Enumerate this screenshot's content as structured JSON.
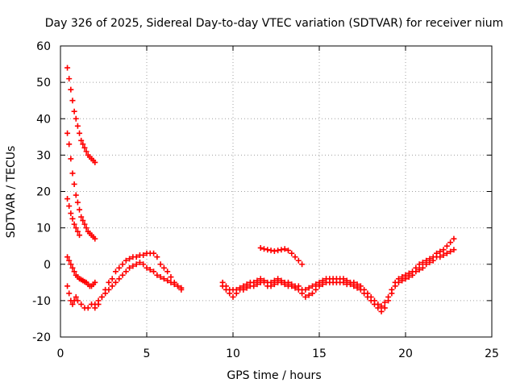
{
  "chart_data": {
    "type": "scatter",
    "title": "Day 326 of 2025, Sidereal Day-to-day VTEC variation (SDTVAR) for receiver nium",
    "xlabel": "GPS time / hours",
    "ylabel": "SDTVAR / TECUs",
    "xlim": [
      0,
      25
    ],
    "ylim": [
      -20,
      60
    ],
    "xticks": [
      0,
      5,
      10,
      15,
      20,
      25
    ],
    "yticks": [
      -20,
      -10,
      0,
      10,
      20,
      30,
      40,
      50,
      60
    ],
    "grid": true,
    "marker": "+",
    "color": "#ff0000",
    "series": [
      {
        "name": "arc1",
        "x": [
          0.4,
          0.5,
          0.6,
          0.7,
          0.8,
          0.9,
          1.0,
          1.1,
          1.2,
          1.3,
          1.4,
          1.5,
          1.6,
          1.7,
          1.8,
          1.9,
          2.0
        ],
        "y": [
          54,
          51,
          48,
          45,
          42,
          40,
          38,
          36,
          34,
          33,
          32,
          31,
          30,
          29.5,
          29,
          28.5,
          28
        ]
      },
      {
        "name": "arc2",
        "x": [
          0.4,
          0.5,
          0.6,
          0.7,
          0.8,
          0.9,
          1.0,
          1.1,
          1.2,
          1.3,
          1.4,
          1.5,
          1.6,
          1.7,
          1.8,
          1.9,
          2.0
        ],
        "y": [
          36,
          33,
          29,
          25,
          22,
          19,
          17,
          15,
          13,
          12,
          11,
          10,
          9,
          8.5,
          8,
          7.5,
          7
        ]
      },
      {
        "name": "arc3",
        "x": [
          0.4,
          0.5,
          0.6,
          0.7,
          0.8,
          0.9,
          1.0,
          1.1
        ],
        "y": [
          18,
          16,
          14,
          12.5,
          11,
          10,
          9,
          8
        ]
      },
      {
        "name": "arc4",
        "x": [
          0.4,
          0.5,
          0.6,
          0.7,
          0.8,
          0.9,
          1.0,
          1.1,
          1.2,
          1.3,
          1.4,
          1.5,
          1.6,
          1.7,
          1.8,
          1.9,
          2.0
        ],
        "y": [
          2,
          1,
          0,
          -1,
          -2,
          -3,
          -3.5,
          -4,
          -4.2,
          -4.5,
          -4.8,
          -5,
          -5.5,
          -6,
          -6,
          -5.5,
          -5
        ]
      },
      {
        "name": "arc5",
        "x": [
          0.4,
          0.5,
          0.6,
          0.7,
          0.8,
          0.9,
          1.0,
          1.2,
          1.4,
          1.6,
          1.8,
          2.0,
          2.2,
          2.4,
          2.6,
          2.8,
          3.0,
          3.2,
          3.4,
          3.6,
          3.8,
          4.0,
          4.2,
          4.4,
          4.6,
          4.8,
          5.0,
          5.2,
          5.4,
          5.6,
          5.8,
          6.0,
          6.2,
          6.4,
          6.6,
          6.8,
          7.0
        ],
        "y": [
          -6,
          -8,
          -10,
          -11,
          -10,
          -9,
          -10,
          -11,
          -12,
          -12,
          -11,
          -11,
          -10,
          -9,
          -7,
          -5,
          -4,
          -2,
          -1,
          0,
          1,
          1.5,
          2,
          2,
          2.5,
          2.5,
          3,
          3,
          3,
          2,
          0,
          -1,
          -2,
          -3.5,
          -5,
          -6,
          -7
        ]
      },
      {
        "name": "arc6",
        "x": [
          2.0,
          2.2,
          2.4,
          2.6,
          2.8,
          3.0,
          3.2,
          3.4,
          3.6,
          3.8,
          4.0,
          4.2,
          4.4,
          4.6,
          4.8,
          5.0,
          5.2,
          5.4,
          5.6,
          5.8,
          6.0,
          6.2,
          6.4,
          6.6,
          6.8,
          7.0
        ],
        "y": [
          -12,
          -11,
          -9,
          -8,
          -7,
          -6,
          -5,
          -4,
          -3,
          -2,
          -1,
          -0.5,
          0,
          0.5,
          0,
          -1,
          -1.5,
          -2,
          -3,
          -3.5,
          -4,
          -4.5,
          -5,
          -5.5,
          -6,
          -6.5
        ]
      },
      {
        "name": "arc7",
        "x": [
          9.4,
          9.6,
          9.8,
          10.0,
          10.2,
          10.4,
          10.6,
          10.8,
          11.0,
          11.2,
          11.4,
          11.6,
          11.8,
          12.0,
          12.2,
          12.4,
          12.6,
          12.8,
          13.0,
          13.2,
          13.4,
          13.6,
          13.8,
          14.0,
          14.2,
          14.4,
          14.6,
          14.8,
          15.0,
          15.2,
          15.4,
          15.6,
          15.8,
          16.0,
          16.2,
          16.4,
          16.6,
          16.8,
          17.0,
          17.2,
          17.4,
          17.6,
          17.8,
          18.0,
          18.2,
          18.4,
          18.6,
          18.8,
          19.0,
          19.2,
          19.4,
          19.6,
          19.8,
          20.0,
          20.2,
          20.4,
          20.6,
          20.8,
          21.0,
          21.2,
          21.4,
          21.6,
          21.8,
          22.0,
          22.2,
          22.4,
          22.6,
          22.8
        ],
        "y": [
          -6,
          -7,
          -8,
          -9,
          -8,
          -7,
          -7,
          -6.5,
          -6,
          -6,
          -5.5,
          -5,
          -5,
          -6,
          -6,
          -5.5,
          -5,
          -5,
          -5.5,
          -6,
          -6,
          -6.5,
          -7,
          -8,
          -9,
          -8.5,
          -8,
          -7,
          -6,
          -5.5,
          -5,
          -5,
          -5,
          -5,
          -5,
          -5,
          -5.5,
          -5.5,
          -6,
          -6.5,
          -7,
          -8,
          -9,
          -10,
          -11,
          -12,
          -13,
          -12,
          -10,
          -8,
          -6,
          -5,
          -4.5,
          -4,
          -3.5,
          -3,
          -2,
          -1.5,
          -1,
          0,
          0.5,
          1,
          2,
          2,
          2.5,
          3,
          3.5,
          4
        ]
      },
      {
        "name": "arc8",
        "x": [
          9.4,
          9.6,
          9.8,
          10.0,
          10.2,
          10.4,
          10.6,
          10.8,
          11.0,
          11.2,
          11.4,
          11.6,
          11.8,
          12.0,
          12.2,
          12.4,
          12.6,
          12.8,
          13.0,
          13.2,
          13.4,
          13.6,
          13.8,
          14.0,
          14.2,
          14.4,
          14.6,
          14.8,
          15.0,
          15.2,
          15.4,
          15.6,
          15.8,
          16.0,
          16.2,
          16.4,
          16.6,
          16.8,
          17.0,
          17.2,
          17.4,
          17.6,
          17.8,
          18.0,
          18.2,
          18.4,
          18.6,
          18.8,
          19.0,
          19.2,
          19.4,
          19.6,
          19.8,
          20.0,
          20.2,
          20.4,
          20.6,
          20.8,
          21.0,
          21.2,
          21.4,
          21.6,
          21.8,
          22.0,
          22.2,
          22.4,
          22.6,
          22.8
        ],
        "y": [
          -5,
          -6,
          -7,
          -7,
          -7,
          -6.5,
          -6,
          -5.5,
          -5,
          -5,
          -4.5,
          -4,
          -4.5,
          -5,
          -5,
          -4.5,
          -4,
          -4.5,
          -5,
          -5,
          -5.5,
          -6,
          -6,
          -7,
          -7,
          -6.5,
          -6,
          -5.5,
          -5,
          -4.5,
          -4,
          -4,
          -4,
          -4,
          -4,
          -4,
          -4.5,
          -5,
          -5,
          -5.5,
          -6,
          -7,
          -8,
          -9,
          -10,
          -11,
          -11.5,
          -10.5,
          -9,
          -7,
          -5,
          -4,
          -3.5,
          -3,
          -2.5,
          -2,
          -1,
          0,
          0.5,
          1,
          1.5,
          2,
          3,
          3.5,
          4,
          5,
          6,
          7
        ]
      },
      {
        "name": "arc9",
        "x": [
          11.6,
          11.8,
          12.0,
          12.2,
          12.4,
          12.6,
          12.8,
          13.0,
          13.2,
          13.4,
          13.6,
          13.8,
          14.0
        ],
        "y": [
          4.5,
          4.2,
          4,
          3.8,
          3.6,
          3.8,
          4,
          4.2,
          3.8,
          3,
          2,
          1,
          0
        ]
      }
    ]
  }
}
